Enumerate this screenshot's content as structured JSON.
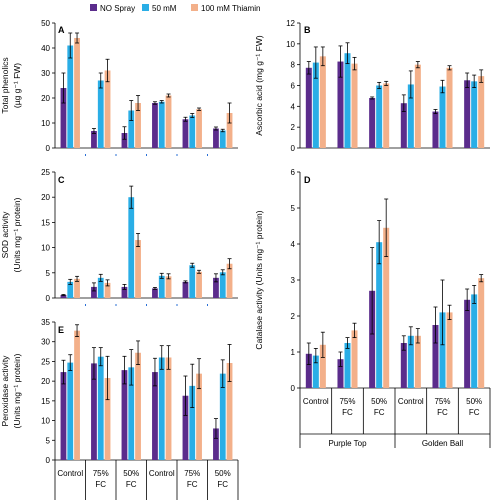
{
  "legend": [
    {
      "label": "NO Spray",
      "color": "#5b2c8c"
    },
    {
      "label": "50 mM",
      "color": "#2aaee6"
    },
    {
      "label": "100 mM Thiamin",
      "color": "#f3b08a"
    }
  ],
  "chart_data": [
    {
      "panel": "A",
      "type": "bar",
      "ylabel": [
        "Total phenolics",
        "(µg g⁻¹ FW)"
      ],
      "ylim": [
        0,
        50
      ],
      "yticks": [
        0,
        10,
        20,
        30,
        40,
        50
      ],
      "series": [
        {
          "name": "NO Spray",
          "values": [
            24,
            6.8,
            6,
            18,
            11.5,
            7.8
          ],
          "errors": [
            6,
            1,
            2.5,
            0.5,
            0.8,
            0.6
          ]
        },
        {
          "name": "50 mM",
          "values": [
            41,
            27,
            15,
            18.5,
            13,
            7
          ],
          "errors": [
            5,
            3,
            4,
            0.5,
            0.8,
            0.5
          ]
        },
        {
          "name": "100 mM Thiamin",
          "values": [
            44,
            31,
            18,
            21,
            15.5,
            14
          ],
          "errors": [
            2,
            4.5,
            3,
            0.6,
            0.5,
            4
          ]
        }
      ]
    },
    {
      "panel": "B",
      "type": "bar",
      "ylabel": [
        "Ascorbic acid (mg g⁻¹ FW)"
      ],
      "ylim": [
        0,
        12
      ],
      "yticks": [
        0,
        2,
        4,
        6,
        8,
        10,
        12
      ],
      "series": [
        {
          "name": "NO Spray",
          "values": [
            7.7,
            8.3,
            4.8,
            4.3,
            3.5,
            6.5
          ],
          "errors": [
            0.6,
            1.5,
            0.1,
            0.8,
            0.2,
            0.7
          ]
        },
        {
          "name": "50 mM",
          "values": [
            8.2,
            9.1,
            6,
            6.1,
            5.9,
            6.4
          ],
          "errors": [
            1.5,
            1,
            0.3,
            1.3,
            0.6,
            0.6
          ]
        },
        {
          "name": "100 mM Thiamin",
          "values": [
            8.8,
            8.1,
            6.2,
            8,
            7.7,
            6.9
          ],
          "errors": [
            0.9,
            0.6,
            0.2,
            0.3,
            0.2,
            0.6
          ]
        }
      ]
    },
    {
      "panel": "C",
      "type": "bar",
      "ylabel": [
        "SOD activity",
        "(Units mg⁻¹ protein)"
      ],
      "ylim": [
        0,
        25
      ],
      "yticks": [
        0,
        5,
        10,
        15,
        20,
        25
      ],
      "series": [
        {
          "name": "NO Spray",
          "values": [
            0.6,
            2.2,
            2.2,
            1.9,
            3.2,
            4
          ],
          "errors": [
            0.1,
            0.8,
            0.5,
            0.2,
            0.2,
            0.8
          ]
        },
        {
          "name": "50 mM",
          "values": [
            3.2,
            4,
            20,
            4.4,
            6.5,
            5.1
          ],
          "errors": [
            0.5,
            0.7,
            2.2,
            0.5,
            0.4,
            0.5
          ]
        },
        {
          "name": "100 mM Thiamin",
          "values": [
            3.8,
            3,
            11.5,
            4.3,
            5.2,
            6.8
          ],
          "errors": [
            0.5,
            0.6,
            1.3,
            0.5,
            0.3,
            1
          ]
        }
      ]
    },
    {
      "panel": "D",
      "type": "bar",
      "ylabel": [
        "Catalase activity (Units mg⁻¹ protein)"
      ],
      "ylim": [
        0,
        6
      ],
      "yticks": [
        0,
        1,
        2,
        3,
        4,
        5,
        6
      ],
      "series": [
        {
          "name": "NO Spray",
          "values": [
            0.95,
            0.8,
            2.7,
            1.25,
            1.75,
            2.45
          ],
          "errors": [
            0.3,
            0.2,
            1.2,
            0.2,
            0.5,
            0.3
          ]
        },
        {
          "name": "50 mM",
          "values": [
            0.9,
            1.25,
            4.05,
            1.45,
            2.1,
            2.6
          ],
          "errors": [
            0.2,
            0.15,
            0.6,
            0.25,
            0.9,
            0.25
          ]
        },
        {
          "name": "100 mM Thiamin",
          "values": [
            1.2,
            1.6,
            4.45,
            1.45,
            2.1,
            3.05
          ],
          "errors": [
            0.35,
            0.2,
            0.8,
            0.2,
            0.2,
            0.1
          ]
        }
      ]
    },
    {
      "panel": "E",
      "type": "bar",
      "ylabel": [
        "Peroxidase activity",
        "(Units mg⁻¹ protein)"
      ],
      "ylim": [
        0,
        35
      ],
      "yticks": [
        0,
        5,
        10,
        15,
        20,
        25,
        30,
        35
      ],
      "series": [
        {
          "name": "NO Spray",
          "values": [
            22.3,
            24.5,
            22.8,
            22.3,
            16.3,
            8
          ],
          "errors": [
            3,
            4,
            3.5,
            3.5,
            5,
            2.5
          ]
        },
        {
          "name": "50 mM",
          "values": [
            24.7,
            26.2,
            23.5,
            26,
            18.8,
            21.9
          ],
          "errors": [
            2,
            2.3,
            4.5,
            3,
            5.5,
            3.5
          ]
        },
        {
          "name": "100 mM Thiamin",
          "values": [
            32.8,
            20.8,
            27.2,
            26,
            21.9,
            24.6
          ],
          "errors": [
            1.5,
            5.5,
            3,
            3,
            3.8,
            4.7
          ]
        }
      ]
    }
  ],
  "categories": [
    "Control",
    "75% FC",
    "50% FC",
    "Control",
    "75% FC",
    "50% FC"
  ],
  "groups": [
    "Purple Top",
    "Golden Ball"
  ]
}
